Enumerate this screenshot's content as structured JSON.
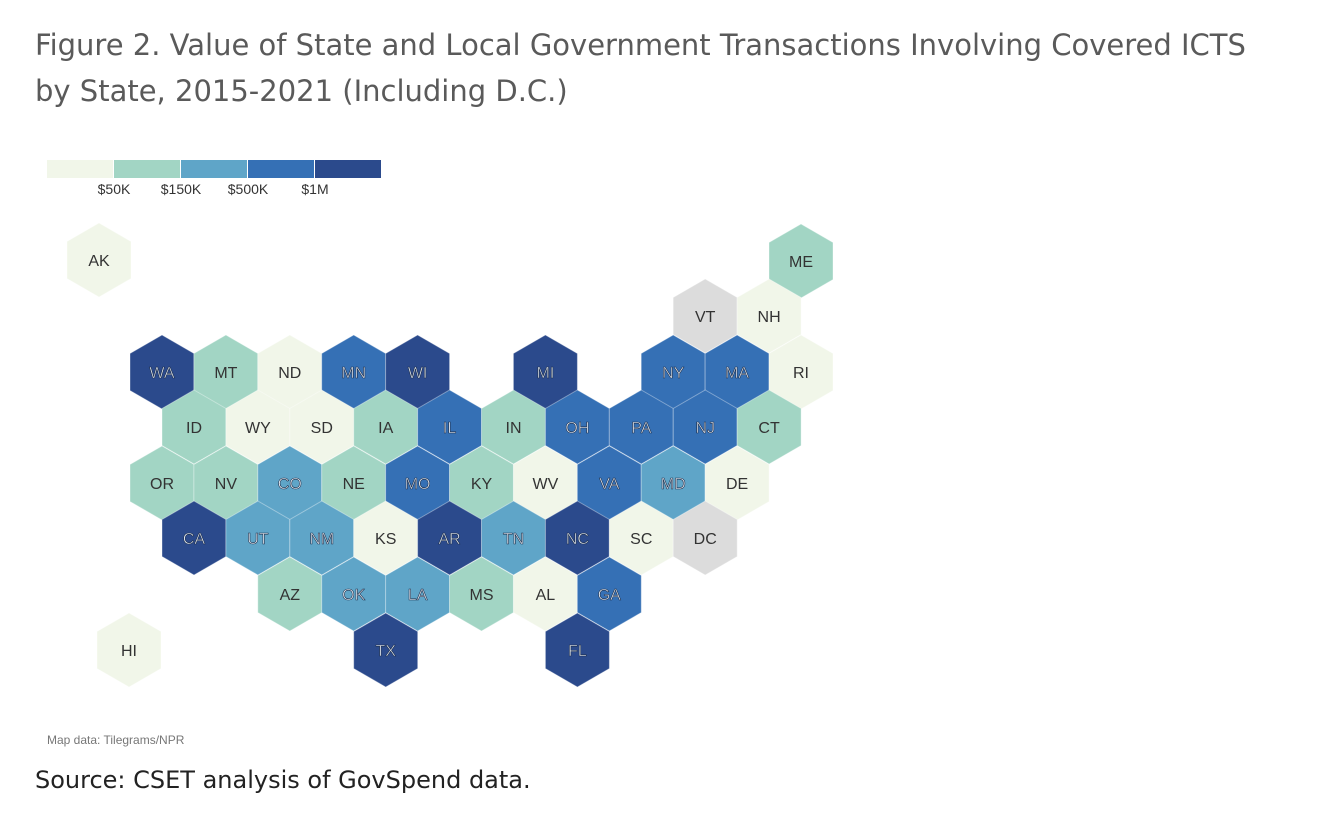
{
  "title": {
    "line1": "Figure 2. Value of State and Local Government Transactions Involving Covered ICTS",
    "line2": "by State, 2015-2021 (Including D.C.)"
  },
  "legend": {
    "colors": [
      "#f1f6e9",
      "#a2d5c4",
      "#5fa5c8",
      "#3570b5",
      "#2b4a8c"
    ],
    "breaks": [
      "$50K",
      "$150K",
      "$500K",
      "$1M"
    ]
  },
  "no_data_color": "#dcdcdc",
  "states": [
    {
      "abbr": "AK",
      "class": 0
    },
    {
      "abbr": "ME",
      "class": 1
    },
    {
      "abbr": "VT",
      "class": null
    },
    {
      "abbr": "NH",
      "class": 0
    },
    {
      "abbr": "WA",
      "class": 4
    },
    {
      "abbr": "MT",
      "class": 1
    },
    {
      "abbr": "ND",
      "class": 0
    },
    {
      "abbr": "MN",
      "class": 3
    },
    {
      "abbr": "WI",
      "class": 4
    },
    {
      "abbr": "MI",
      "class": 4
    },
    {
      "abbr": "NY",
      "class": 3
    },
    {
      "abbr": "MA",
      "class": 3
    },
    {
      "abbr": "RI",
      "class": 0
    },
    {
      "abbr": "ID",
      "class": 1
    },
    {
      "abbr": "WY",
      "class": 0
    },
    {
      "abbr": "SD",
      "class": 0
    },
    {
      "abbr": "IA",
      "class": 1
    },
    {
      "abbr": "IL",
      "class": 3
    },
    {
      "abbr": "IN",
      "class": 1
    },
    {
      "abbr": "OH",
      "class": 3
    },
    {
      "abbr": "PA",
      "class": 3
    },
    {
      "abbr": "NJ",
      "class": 3
    },
    {
      "abbr": "CT",
      "class": 1
    },
    {
      "abbr": "OR",
      "class": 1
    },
    {
      "abbr": "NV",
      "class": 1
    },
    {
      "abbr": "CO",
      "class": 2
    },
    {
      "abbr": "NE",
      "class": 1
    },
    {
      "abbr": "MO",
      "class": 3
    },
    {
      "abbr": "KY",
      "class": 1
    },
    {
      "abbr": "WV",
      "class": 0
    },
    {
      "abbr": "VA",
      "class": 3
    },
    {
      "abbr": "MD",
      "class": 2
    },
    {
      "abbr": "DE",
      "class": 0
    },
    {
      "abbr": "CA",
      "class": 4
    },
    {
      "abbr": "UT",
      "class": 2
    },
    {
      "abbr": "NM",
      "class": 2
    },
    {
      "abbr": "KS",
      "class": 0
    },
    {
      "abbr": "AR",
      "class": 4
    },
    {
      "abbr": "TN",
      "class": 2
    },
    {
      "abbr": "NC",
      "class": 4
    },
    {
      "abbr": "SC",
      "class": 0
    },
    {
      "abbr": "DC",
      "class": null
    },
    {
      "abbr": "AZ",
      "class": 1
    },
    {
      "abbr": "OK",
      "class": 2
    },
    {
      "abbr": "LA",
      "class": 2
    },
    {
      "abbr": "MS",
      "class": 1
    },
    {
      "abbr": "AL",
      "class": 0
    },
    {
      "abbr": "GA",
      "class": 3
    },
    {
      "abbr": "TX",
      "class": 4
    },
    {
      "abbr": "FL",
      "class": 4
    },
    {
      "abbr": "HI",
      "class": 0
    }
  ],
  "map_credit": "Map data: Tilegrams/NPR",
  "source": "Source: CSET analysis of GovSpend data."
}
